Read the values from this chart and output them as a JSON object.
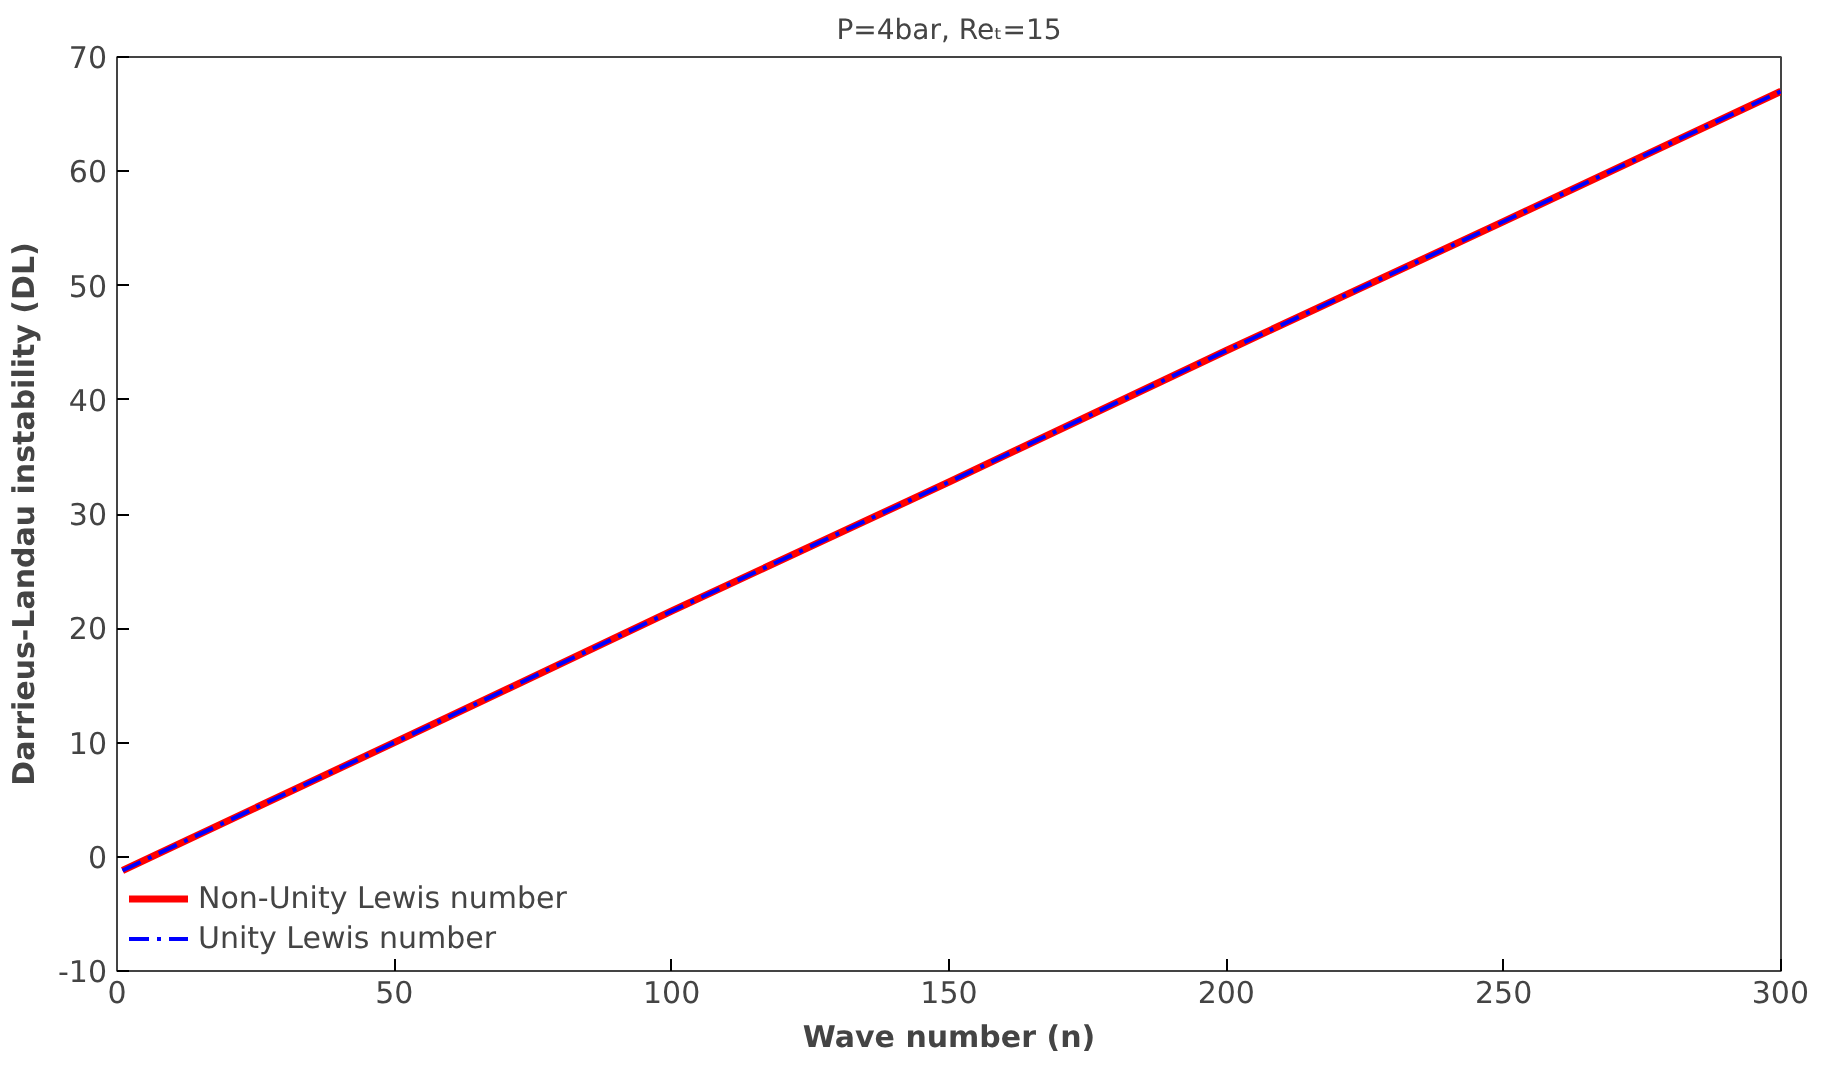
{
  "chart_data": {
    "type": "line",
    "title": "P=4bar, Reₜ=15",
    "xlabel": "Wave number (n)",
    "ylabel": "Darrieus-Landau instability (DL)",
    "x": [
      1,
      50,
      100,
      150,
      200,
      250,
      300
    ],
    "series": [
      {
        "name": "Non-Unity Lewis number",
        "color": "#ff0000",
        "line_style": "solid",
        "values": [
          -1.2,
          10,
          21.5,
          32.8,
          44.3,
          55.6,
          67
        ]
      },
      {
        "name": "Unity Lewis number",
        "color": "#0000ff",
        "line_style": "dashed",
        "values": [
          -1.2,
          10,
          21.5,
          32.8,
          44.3,
          55.6,
          67
        ]
      }
    ],
    "xlim": [
      0,
      300
    ],
    "ylim": [
      -10,
      70
    ],
    "xticks": [
      0,
      50,
      100,
      150,
      200,
      250,
      300
    ],
    "yticks": [
      -10,
      0,
      10,
      20,
      30,
      40,
      50,
      60,
      70
    ],
    "grid": false,
    "legend": "bottom left"
  }
}
